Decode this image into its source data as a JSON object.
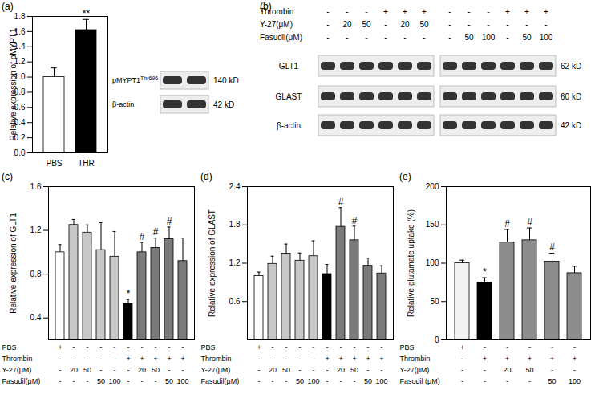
{
  "chart_data": [
    {
      "type": "bar",
      "panel": "(a)",
      "categories": [
        "PBS",
        "THR"
      ],
      "values": [
        1.0,
        1.62
      ],
      "errors": [
        0.12,
        0.14
      ],
      "colors": [
        "#ffffff",
        "#000000"
      ],
      "ylabel": "Relative expression of pMYPT1",
      "ylim": [
        0,
        1.8
      ],
      "yticks": [
        {
          "value": 0,
          "label": "0.0"
        },
        0.2,
        0.4,
        0.6,
        0.8,
        {
          "value": 1,
          "label": "1.0"
        },
        1.2,
        1.4,
        1.6,
        1.8
      ],
      "annotations": [
        null,
        "**"
      ]
    },
    {
      "type": "blot",
      "lanes": 2,
      "rows": [
        {
          "label": "pMYPT1",
          "sup": "Thr696",
          "size": "140 kD"
        },
        {
          "label": "β-actin",
          "size": "42 kD"
        }
      ]
    },
    {
      "type": "blot",
      "panel": "(b)",
      "conditions": [
        {
          "label": "Thrombin",
          "values": [
            "-",
            "-",
            "-",
            "+",
            "+",
            "+",
            "-",
            "-",
            "-",
            "+",
            "+",
            "+"
          ]
        },
        {
          "label": "Y-27(μM)",
          "values": [
            "-",
            "20",
            "50",
            "-",
            "20",
            "50",
            "-",
            "-",
            "-",
            "-",
            "-",
            "-"
          ]
        },
        {
          "label": "Fasudil(μM)",
          "values": [
            "-",
            "-",
            "-",
            "-",
            "-",
            "-",
            "-",
            "50",
            "100",
            "-",
            "50",
            "100"
          ]
        }
      ],
      "rows": [
        {
          "label": "GLT1",
          "size": "62 kD"
        },
        {
          "label": "GLAST",
          "size": "60 kD"
        },
        {
          "label": "β-actin",
          "size": "42 kD"
        }
      ]
    },
    {
      "type": "bar",
      "panel": "(c)",
      "values": [
        1.0,
        1.25,
        1.18,
        1.02,
        0.96,
        0.53,
        1.0,
        1.04,
        1.12,
        0.92
      ],
      "errors": [
        0.07,
        0.05,
        0.07,
        0.25,
        0.23,
        0.04,
        0.09,
        0.09,
        0.11,
        0.21
      ],
      "colors": [
        "#ffffff",
        "#c8c8c8",
        "#c8c8c8",
        "#c8c8c8",
        "#c8c8c8",
        "#000000",
        "#7a7a7a",
        "#7a7a7a",
        "#7a7a7a",
        "#7a7a7a"
      ],
      "ylabel": "Relative expression of GLT1",
      "ylim": [
        0.2,
        1.6
      ],
      "yticks": [
        0.4,
        0.8,
        1.2,
        1.6
      ],
      "annotations": [
        null,
        null,
        null,
        null,
        null,
        "*",
        "#",
        "#",
        "#",
        null
      ],
      "conditions": [
        {
          "label": "PBS",
          "values": [
            "+",
            "-",
            "-",
            "-",
            "-",
            "-",
            "-",
            "-",
            "-",
            "-"
          ]
        },
        {
          "label": "Thrombin",
          "values": [
            "-",
            "-",
            "-",
            "-",
            "-",
            "+",
            "+",
            "+",
            "+",
            "+"
          ]
        },
        {
          "label": "Y-27(μM)",
          "values": [
            "-",
            "20",
            "50",
            "-",
            "-",
            "-",
            "20",
            "50",
            "-",
            "-"
          ]
        },
        {
          "label": "Fasudil(μM)",
          "values": [
            "-",
            "-",
            "-",
            "50",
            "100",
            "-",
            "-",
            "-",
            "50",
            "100"
          ]
        }
      ]
    },
    {
      "type": "bar",
      "panel": "(d)",
      "values": [
        1.0,
        1.19,
        1.35,
        1.24,
        1.31,
        1.03,
        1.77,
        1.56,
        1.16,
        1.04
      ],
      "errors": [
        0.06,
        0.12,
        0.15,
        0.12,
        0.24,
        0.15,
        0.3,
        0.22,
        0.12,
        0.12
      ],
      "colors": [
        "#ffffff",
        "#c8c8c8",
        "#c8c8c8",
        "#c8c8c8",
        "#c8c8c8",
        "#000000",
        "#7a7a7a",
        "#7a7a7a",
        "#7a7a7a",
        "#7a7a7a"
      ],
      "ylabel": "Relative expression of GLAST",
      "ylim": [
        0,
        2.4
      ],
      "yticks": [
        0.6,
        1.2,
        1.8,
        2.4
      ],
      "annotations": [
        null,
        null,
        null,
        null,
        null,
        null,
        "#",
        "#",
        null,
        null
      ],
      "conditions": [
        {
          "label": "PBS",
          "values": [
            "+",
            "-",
            "-",
            "-",
            "-",
            "-",
            "-",
            "-",
            "-",
            "-"
          ]
        },
        {
          "label": "Thrombin",
          "values": [
            "-",
            "-",
            "-",
            "-",
            "-",
            "+",
            "+",
            "+",
            "+",
            "+"
          ]
        },
        {
          "label": "Y-27(μM)",
          "values": [
            "-",
            "20",
            "50",
            "-",
            "-",
            "-",
            "20",
            "50",
            "-",
            "-"
          ]
        },
        {
          "label": "Fasudil(μM)",
          "values": [
            "-",
            "-",
            "-",
            "50",
            "100",
            "-",
            "-",
            "-",
            "50",
            "100"
          ]
        }
      ]
    },
    {
      "type": "bar",
      "panel": "(e)",
      "values": [
        100,
        75,
        127,
        130,
        102,
        87
      ],
      "errors": [
        4,
        6,
        17,
        16,
        11,
        9
      ],
      "colors": [
        "#f2f2f2",
        "#000000",
        "#8c8c8c",
        "#8c8c8c",
        "#8c8c8c",
        "#8c8c8c"
      ],
      "ylabel": "Relative glutamate uptake (%)",
      "ylim": [
        0,
        200
      ],
      "yticks": [
        0,
        50,
        100,
        150,
        200
      ],
      "annotations": [
        null,
        "*",
        "#",
        "#",
        "#",
        null
      ],
      "conditions": [
        {
          "label": "PBS",
          "values": [
            "+",
            "-",
            "-",
            "-",
            "-",
            "-"
          ]
        },
        {
          "label": "Thrombin",
          "values": [
            "-",
            "+",
            "+",
            "+",
            "+",
            "+"
          ]
        },
        {
          "label": "Y-27(μM)",
          "values": [
            "-",
            "-",
            "20",
            "50",
            "-",
            "-"
          ]
        },
        {
          "label": "Fasudil (μM)",
          "values": [
            "-",
            "-",
            "-",
            "-",
            "50",
            "100"
          ]
        }
      ]
    }
  ]
}
